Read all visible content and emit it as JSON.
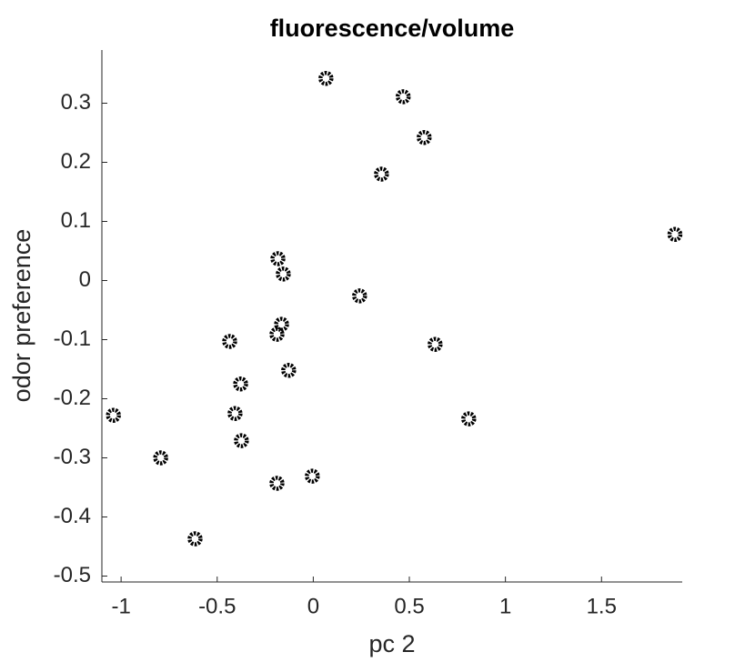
{
  "chart_data": {
    "type": "scatter",
    "title": "fluorescence/volume",
    "x_label": "pc 2",
    "y_label": "odor preference",
    "x": [
      0.066,
      0.468,
      0.577,
      0.355,
      1.882,
      -0.184,
      -0.156,
      0.241,
      -0.165,
      -0.189,
      -0.435,
      0.634,
      -0.128,
      -0.378,
      -1.04,
      -0.407,
      0.809,
      -0.374,
      -0.794,
      -0.005,
      -0.189,
      -0.615
    ],
    "values": [
      0.342,
      0.311,
      0.242,
      0.18,
      0.078,
      0.037,
      0.011,
      -0.026,
      -0.074,
      -0.091,
      -0.103,
      -0.108,
      -0.152,
      -0.175,
      -0.228,
      -0.225,
      -0.234,
      -0.271,
      -0.3,
      -0.331,
      -0.343,
      -0.437
    ],
    "color": "#000000",
    "xlim": [
      -1.1,
      1.92
    ],
    "ylim": [
      -0.51,
      0.39
    ],
    "xticks": [
      -1,
      -0.5,
      0,
      0.5,
      1,
      1.5
    ],
    "yticks": [
      -0.5,
      -0.4,
      -0.3,
      -0.2,
      -0.1,
      0,
      0.1,
      0.2,
      0.3
    ]
  }
}
